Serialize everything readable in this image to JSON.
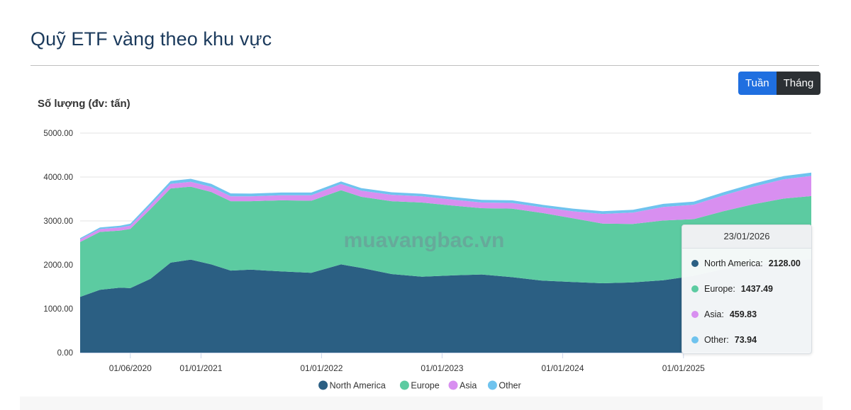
{
  "page": {
    "title": "Quỹ ETF vàng theo khu vực"
  },
  "toggle": {
    "week_label": "Tuần",
    "month_label": "Tháng"
  },
  "watermark": "muavangbac.vn",
  "tooltip": {
    "date": "23/01/2026",
    "rows": [
      {
        "name": "North America",
        "value": "2128.00"
      },
      {
        "name": "Europe",
        "value": "1437.49"
      },
      {
        "name": "Asia",
        "value": "459.83"
      },
      {
        "name": "Other",
        "value": "73.94"
      }
    ]
  },
  "colors": {
    "North America": "#2b5f83",
    "Europe": "#5ccba1",
    "Asia": "#d88ff0",
    "Other": "#6fc3ee",
    "title": "#1b3a5c"
  },
  "chart_data": {
    "type": "area",
    "stacked": true,
    "title": "",
    "ylabel": "Số lượng (đv: tấn)",
    "ylim": [
      0,
      5000
    ],
    "yticks": [
      "0.00",
      "1000.00",
      "2000.00",
      "3000.00",
      "4000.00",
      "5000.00"
    ],
    "xtick_labels": [
      "01/06/2020",
      "01/01/2021",
      "01/01/2022",
      "01/01/2023",
      "01/01/2024",
      "01/01/2025"
    ],
    "xtick_dates": [
      "2020-06-01",
      "2021-01-01",
      "2022-01-01",
      "2023-01-01",
      "2024-01-01",
      "2025-01-01"
    ],
    "grid": true,
    "legend": "bottom",
    "x": [
      "2020-01-01",
      "2020-03-01",
      "2020-05-01",
      "2020-06-01",
      "2020-08-01",
      "2020-10-01",
      "2020-12-01",
      "2021-02-01",
      "2021-04-01",
      "2021-06-01",
      "2021-09-01",
      "2021-12-01",
      "2022-03-01",
      "2022-05-01",
      "2022-08-01",
      "2022-11-01",
      "2023-02-01",
      "2023-05-01",
      "2023-08-01",
      "2023-11-01",
      "2024-02-01",
      "2024-05-01",
      "2024-08-01",
      "2024-11-01",
      "2025-02-01",
      "2025-05-01",
      "2025-08-01",
      "2025-11-01",
      "2026-01-23"
    ],
    "series": [
      {
        "name": "North America",
        "values": [
          1270,
          1430,
          1480,
          1470,
          1680,
          2050,
          2120,
          2010,
          1870,
          1890,
          1850,
          1820,
          2010,
          1930,
          1790,
          1730,
          1760,
          1780,
          1720,
          1640,
          1610,
          1580,
          1600,
          1650,
          1750,
          1900,
          2000,
          2080,
          2128
        ]
      },
      {
        "name": "Europe",
        "values": [
          1250,
          1320,
          1300,
          1350,
          1590,
          1690,
          1660,
          1650,
          1580,
          1560,
          1620,
          1640,
          1690,
          1620,
          1660,
          1690,
          1590,
          1510,
          1560,
          1540,
          1450,
          1360,
          1330,
          1360,
          1290,
          1320,
          1380,
          1430,
          1437.49
        ]
      },
      {
        "name": "Asia",
        "values": [
          60,
          65,
          70,
          72,
          92,
          105,
          110,
          115,
          112,
          110,
          115,
          125,
          140,
          140,
          145,
          140,
          135,
          130,
          130,
          130,
          160,
          220,
          260,
          310,
          330,
          360,
          400,
          440,
          459.83
        ]
      },
      {
        "name": "Other",
        "values": [
          30,
          35,
          40,
          45,
          55,
          65,
          70,
          70,
          65,
          62,
          62,
          62,
          60,
          58,
          58,
          60,
          60,
          60,
          60,
          58,
          60,
          62,
          65,
          68,
          70,
          72,
          72,
          73,
          73.94
        ]
      }
    ]
  }
}
